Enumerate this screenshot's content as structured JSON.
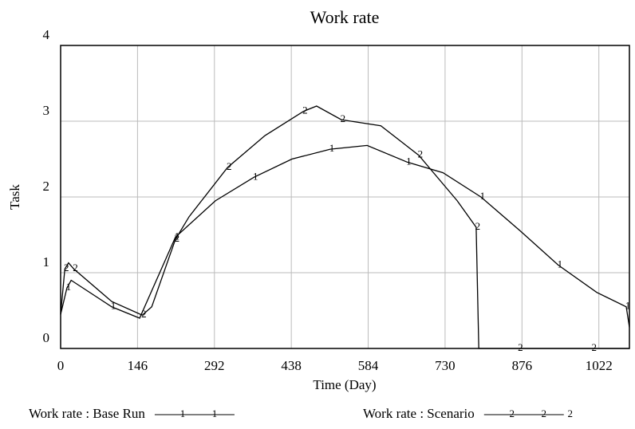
{
  "chart_data": {
    "type": "line",
    "title": "Work rate",
    "xlabel": "Time (Day)",
    "ylabel": "Task",
    "xlim": [
      0,
      1080
    ],
    "xticks": [
      0,
      146,
      292,
      438,
      584,
      730,
      876,
      1022
    ],
    "ylim": [
      0,
      4
    ],
    "yticks": [
      0,
      1,
      2,
      3,
      4
    ],
    "grid": true,
    "series": [
      {
        "name": "Work rate : Base Run",
        "color": "#000000",
        "marker": "1",
        "x": [
          0,
          12,
          20,
          97,
          150,
          218,
          294,
          367,
          439,
          512,
          582,
          658,
          726,
          798,
          873,
          945,
          1018,
          1074,
          1080
        ],
        "values": [
          0.45,
          0.8,
          0.9,
          0.55,
          0.4,
          1.47,
          1.95,
          2.26,
          2.5,
          2.63,
          2.68,
          2.46,
          2.32,
          2.0,
          1.55,
          1.1,
          0.74,
          0.55,
          0.28
        ]
      },
      {
        "name": "Work rate : Scenario",
        "color": "#000000",
        "marker": "2",
        "x": [
          0,
          8,
          15,
          25,
          97,
          155,
          173,
          218,
          244,
          317,
          388,
          461,
          486,
          533,
          608,
          680,
          753,
          789,
          794,
          870,
          940,
          1010,
          1080
        ],
        "values": [
          0.45,
          1.05,
          1.13,
          1.05,
          0.62,
          0.44,
          0.55,
          1.44,
          1.74,
          2.39,
          2.81,
          3.13,
          3.2,
          3.02,
          2.94,
          2.55,
          1.95,
          1.6,
          0,
          0,
          0,
          0,
          0
        ]
      }
    ]
  }
}
